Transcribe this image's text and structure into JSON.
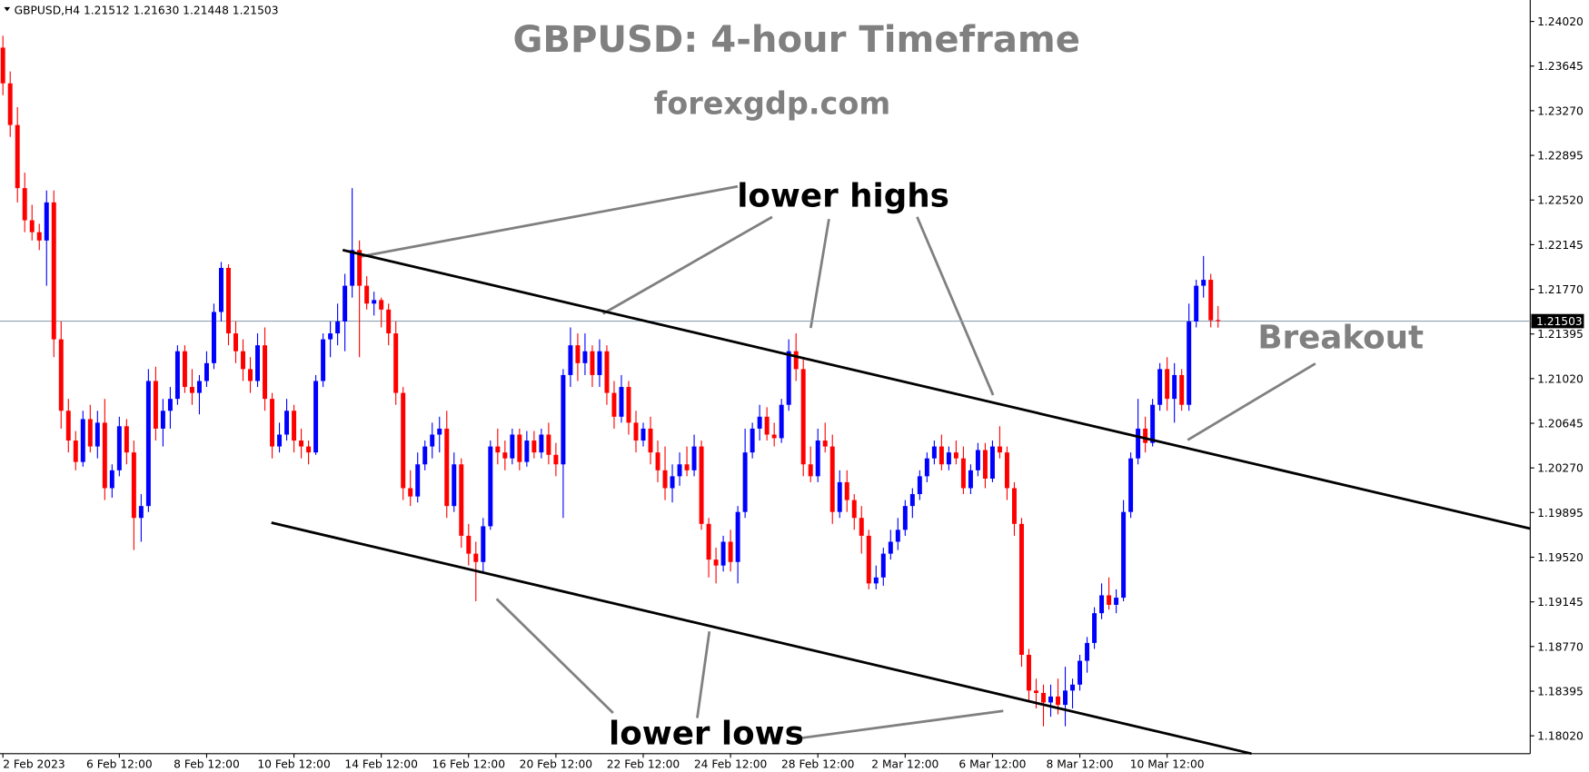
{
  "chart_data": {
    "type": "candlestick",
    "header": "GBPUSD,H4  1.21512 1.21630 1.21448 1.21503",
    "title": "GBPUSD: 4-hour Timeframe",
    "subtitle": "forexgdp.com",
    "annotations": [
      "lower highs",
      "lower lows",
      "Breakout"
    ],
    "up_color": "#0000ff",
    "down_color": "#ff0000",
    "open": [
      1.238,
      1.235,
      1.2315,
      1.2262,
      1.2235,
      1.2225,
      1.2218,
      1.225,
      1.2135,
      1.2075,
      1.205,
      1.2032,
      1.2068,
      1.2045,
      1.2065,
      1.201,
      1.2025,
      1.2062,
      1.204,
      1.1985,
      1.1995,
      1.21,
      1.206,
      1.2075,
      1.2085,
      1.2125,
      1.2095,
      1.209,
      1.21,
      1.2115,
      1.2158,
      1.2195,
      1.214,
      1.2125,
      1.211,
      1.21,
      1.213,
      1.2085,
      1.2045,
      1.2055,
      1.2075,
      1.205,
      1.2045,
      1.204,
      1.21,
      1.2135,
      1.214,
      1.215,
      1.218,
      1.221,
      1.218,
      1.2165,
      1.2168,
      1.216,
      1.214,
      1.209,
      1.201,
      1.2003,
      1.203,
      1.2045,
      1.2055,
      1.206,
      1.1995,
      1.203,
      1.197,
      1.1955,
      1.1948,
      1.1978,
      1.2045,
      1.204,
      1.2035,
      1.2055,
      1.2032,
      1.205,
      1.204,
      1.2055,
      1.2038,
      1.203,
      1.2105,
      1.213,
      1.2115,
      1.2125,
      1.2105,
      1.2125,
      1.209,
      1.207,
      1.2095,
      1.2065,
      1.205,
      1.206,
      1.204,
      1.2025,
      1.201,
      1.202,
      1.203,
      1.2025,
      1.2045,
      1.198,
      1.195,
      1.1945,
      1.1965,
      1.1948,
      1.199,
      1.204,
      1.206,
      1.207,
      1.2055,
      1.2052,
      1.208,
      1.2125,
      1.211,
      1.203,
      1.202,
      1.205,
      1.2045,
      1.199,
      1.2015,
      1.2,
      1.1985,
      1.197,
      1.193,
      1.1935,
      1.1955,
      1.1965,
      1.1975,
      1.1995,
      1.2005,
      1.202,
      1.2035,
      1.2045,
      1.203,
      1.204,
      1.2035,
      1.201,
      1.2025,
      1.2042,
      1.2018,
      1.2045,
      1.204,
      1.201,
      1.198,
      1.187,
      1.184,
      1.1838,
      1.183,
      1.1835,
      1.1828,
      1.184,
      1.1845,
      1.1865,
      1.188,
      1.1905,
      1.192,
      1.1912,
      1.1918,
      1.199,
      1.2035,
      1.206,
      1.2048,
      1.208,
      1.211,
      1.2085,
      1.2105,
      1.208,
      1.215,
      1.218,
      1.2185,
      1.21512
    ],
    "high": [
      1.239,
      1.236,
      1.233,
      1.2275,
      1.2248,
      1.2232,
      1.226,
      1.226,
      1.215,
      1.2085,
      1.2058,
      1.2075,
      1.208,
      1.2075,
      1.2085,
      1.203,
      1.207,
      1.2068,
      1.205,
      1.2005,
      1.211,
      1.2112,
      1.2085,
      1.2095,
      1.213,
      1.213,
      1.211,
      1.2105,
      1.2125,
      1.2165,
      1.22,
      1.2198,
      1.215,
      1.2135,
      1.212,
      1.214,
      1.2145,
      1.209,
      1.2065,
      1.2085,
      1.208,
      1.206,
      1.205,
      1.2105,
      1.214,
      1.215,
      1.2165,
      1.219,
      1.2262,
      1.2218,
      1.2188,
      1.2175,
      1.217,
      1.2165,
      1.215,
      1.2095,
      1.2025,
      1.204,
      1.205,
      1.2065,
      1.207,
      1.2075,
      1.204,
      1.2035,
      1.198,
      1.1965,
      1.1985,
      1.205,
      1.206,
      1.205,
      1.206,
      1.206,
      1.2058,
      1.2058,
      1.206,
      1.2065,
      1.2048,
      1.211,
      1.2145,
      1.214,
      1.214,
      1.213,
      1.2135,
      1.213,
      1.21,
      1.2105,
      1.21,
      1.2075,
      1.2065,
      1.207,
      1.205,
      1.2045,
      1.203,
      1.204,
      1.2045,
      1.2055,
      1.205,
      1.1985,
      1.196,
      1.197,
      1.1975,
      1.1995,
      1.206,
      1.2065,
      1.208,
      1.2078,
      1.2065,
      1.2085,
      1.2135,
      1.214,
      1.2118,
      1.2045,
      1.206,
      1.2065,
      1.2055,
      1.2025,
      1.2025,
      1.2005,
      1.1995,
      1.1975,
      1.1945,
      1.196,
      1.1975,
      1.1985,
      1.2,
      1.201,
      1.2025,
      1.204,
      1.205,
      1.2055,
      1.2045,
      1.205,
      1.2045,
      1.203,
      1.2048,
      1.2048,
      1.205,
      1.2062,
      1.2045,
      1.2015,
      1.1985,
      1.1875,
      1.185,
      1.1845,
      1.1845,
      1.185,
      1.186,
      1.185,
      1.187,
      1.1885,
      1.191,
      1.193,
      1.1935,
      1.1925,
      1.2,
      1.204,
      1.2085,
      1.207,
      1.2085,
      1.2115,
      1.212,
      1.2115,
      1.211,
      1.2165,
      1.2185,
      1.2205,
      1.219,
      1.2163
    ],
    "low": [
      1.234,
      1.2305,
      1.225,
      1.2225,
      1.2218,
      1.221,
      1.218,
      1.212,
      1.206,
      1.204,
      1.2025,
      1.2028,
      1.204,
      1.2035,
      1.2,
      1.2002,
      1.202,
      1.203,
      1.1958,
      1.1965,
      1.199,
      1.205,
      1.2045,
      1.206,
      1.208,
      1.209,
      1.208,
      1.2072,
      1.2095,
      1.211,
      1.215,
      1.213,
      1.2115,
      1.21,
      1.209,
      1.2095,
      1.2075,
      1.2035,
      1.204,
      1.205,
      1.204,
      1.2035,
      1.203,
      1.2038,
      1.2095,
      1.212,
      1.213,
      1.2125,
      1.217,
      1.212,
      1.216,
      1.2155,
      1.2145,
      1.213,
      1.208,
      1.2,
      1.1995,
      1.1998,
      1.2025,
      1.2035,
      1.204,
      1.1985,
      1.199,
      1.196,
      1.1945,
      1.1915,
      1.194,
      1.1975,
      1.203,
      1.2025,
      1.203,
      1.2025,
      1.2028,
      1.2035,
      1.2035,
      1.203,
      1.202,
      1.1985,
      1.2095,
      1.21,
      1.2105,
      1.2095,
      1.2095,
      1.208,
      1.206,
      1.2065,
      1.2055,
      1.204,
      1.2045,
      1.203,
      1.2015,
      1.2,
      1.1998,
      1.2012,
      1.202,
      1.202,
      1.1975,
      1.1935,
      1.193,
      1.194,
      1.194,
      1.193,
      1.1985,
      1.2035,
      1.205,
      1.205,
      1.2045,
      1.2048,
      1.2075,
      1.21,
      1.202,
      1.2015,
      1.2015,
      1.204,
      1.198,
      1.1985,
      1.199,
      1.1975,
      1.1955,
      1.1925,
      1.1925,
      1.1928,
      1.195,
      1.1958,
      1.197,
      1.1985,
      1.2,
      1.2015,
      1.203,
      1.2025,
      1.2025,
      1.203,
      1.2005,
      1.2005,
      1.202,
      1.201,
      1.2015,
      1.2035,
      1.2,
      1.197,
      1.186,
      1.183,
      1.1825,
      1.181,
      1.1818,
      1.182,
      1.181,
      1.1825,
      1.184,
      1.1855,
      1.1875,
      1.19,
      1.1908,
      1.1905,
      1.1915,
      1.1985,
      1.203,
      1.204,
      1.2045,
      1.2075,
      1.2075,
      1.2065,
      1.2075,
      1.2075,
      1.2145,
      1.217,
      1.2145,
      1.21448
    ],
    "close": [
      1.235,
      1.2315,
      1.2262,
      1.2235,
      1.2225,
      1.2218,
      1.225,
      1.2135,
      1.2075,
      1.205,
      1.2032,
      1.2068,
      1.2045,
      1.2065,
      1.201,
      1.2025,
      1.2062,
      1.204,
      1.1985,
      1.1995,
      1.21,
      1.206,
      1.2075,
      1.2085,
      1.2125,
      1.2095,
      1.209,
      1.21,
      1.2115,
      1.2158,
      1.2195,
      1.214,
      1.2125,
      1.211,
      1.21,
      1.213,
      1.2085,
      1.2045,
      1.2055,
      1.2075,
      1.205,
      1.2045,
      1.204,
      1.21,
      1.2135,
      1.214,
      1.215,
      1.218,
      1.221,
      1.218,
      1.2165,
      1.2168,
      1.216,
      1.214,
      1.209,
      1.201,
      1.2003,
      1.203,
      1.2045,
      1.2055,
      1.206,
      1.1995,
      1.203,
      1.197,
      1.1955,
      1.1948,
      1.1978,
      1.2045,
      1.204,
      1.2035,
      1.2055,
      1.2032,
      1.205,
      1.204,
      1.2055,
      1.2038,
      1.203,
      1.2105,
      1.213,
      1.2115,
      1.2125,
      1.2105,
      1.2125,
      1.209,
      1.207,
      1.2095,
      1.2065,
      1.205,
      1.206,
      1.204,
      1.2025,
      1.201,
      1.202,
      1.203,
      1.2025,
      1.2045,
      1.198,
      1.195,
      1.1945,
      1.1965,
      1.1948,
      1.199,
      1.204,
      1.206,
      1.207,
      1.2055,
      1.2052,
      1.208,
      1.2125,
      1.211,
      1.203,
      1.202,
      1.205,
      1.2045,
      1.199,
      1.2015,
      1.2,
      1.1985,
      1.197,
      1.193,
      1.1935,
      1.1955,
      1.1965,
      1.1975,
      1.1995,
      1.2005,
      1.202,
      1.2035,
      1.2045,
      1.203,
      1.204,
      1.2035,
      1.201,
      1.2025,
      1.2042,
      1.2018,
      1.2045,
      1.204,
      1.201,
      1.198,
      1.187,
      1.184,
      1.1838,
      1.183,
      1.1835,
      1.1828,
      1.184,
      1.1845,
      1.1865,
      1.188,
      1.1905,
      1.192,
      1.1912,
      1.1918,
      1.199,
      1.2035,
      1.206,
      1.2048,
      1.208,
      1.211,
      1.2085,
      1.2105,
      1.208,
      1.215,
      1.218,
      1.2185,
      1.2151,
      1.21503
    ],
    "last_price": 1.21503,
    "trendlines": [
      {
        "x": [
          46.7,
          209.9
        ],
        "y": [
          1.221,
          1.1976
        ]
      },
      {
        "x": [
          36.9,
          171.6
        ],
        "y": [
          1.1981,
          1.1787
        ]
      }
    ],
    "xlim": [
      -0.4,
      209.9
    ],
    "ylim": [
      1.1787,
      1.242
    ],
    "yticks": [
      {
        "value": 1.2402,
        "label": "1.24020"
      },
      1.23645,
      {
        "value": 1.2327,
        "label": "1.23270"
      },
      1.22895,
      {
        "value": 1.2252,
        "label": "1.22520"
      },
      1.22145,
      {
        "value": 1.2177,
        "label": "1.21770"
      },
      1.21395,
      {
        "value": 1.2102,
        "label": "1.21020"
      },
      1.20645,
      {
        "value": 1.2027,
        "label": "1.20270"
      },
      1.19895,
      {
        "value": 1.1952,
        "label": "1.19520"
      },
      1.19145,
      {
        "value": 1.1877,
        "label": "1.18770"
      },
      1.18395,
      {
        "value": 1.1802,
        "label": "1.18020"
      }
    ],
    "xticks": [
      {
        "value": 0,
        "label": "2 Feb 2023"
      },
      {
        "value": 16,
        "label": "6 Feb 12:00"
      },
      {
        "value": 28,
        "label": "8 Feb 12:00"
      },
      {
        "value": 40,
        "label": "10 Feb 12:00"
      },
      {
        "value": 52,
        "label": "14 Feb 12:00"
      },
      {
        "value": 64,
        "label": "16 Feb 12:00"
      },
      {
        "value": 76,
        "label": "20 Feb 12:00"
      },
      {
        "value": 88,
        "label": "22 Feb 12:00"
      },
      {
        "value": 100,
        "label": "24 Feb 12:00"
      },
      {
        "value": 112,
        "label": "28 Feb 12:00"
      },
      {
        "value": 124,
        "label": "2 Mar 12:00"
      },
      {
        "value": 136,
        "label": "6 Mar 12:00"
      },
      {
        "value": 148,
        "label": "8 Mar 12:00"
      },
      {
        "value": 160,
        "label": "10 Mar 12:00"
      }
    ]
  }
}
